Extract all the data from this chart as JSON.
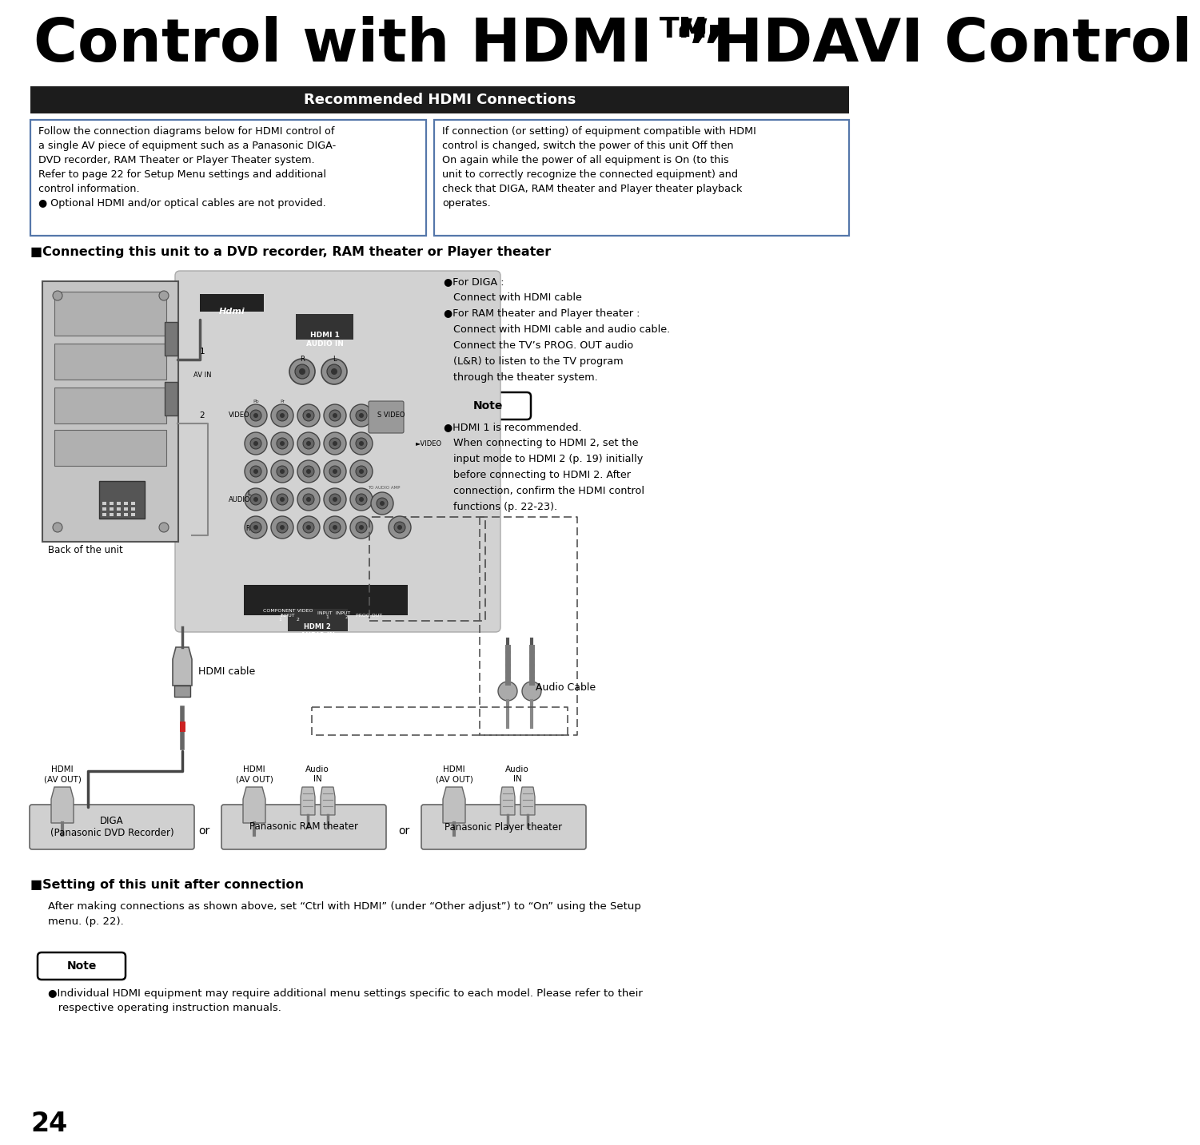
{
  "title_part1": "Control with HDMI “HDAVI Control",
  "title_tm": "TM",
  "title_part2": "”",
  "section_banner": "Recommended HDMI Connections",
  "left_box_text": "Follow the connection diagrams below for HDMI control of\na single AV piece of equipment such as a Panasonic DIGA-\nDVD recorder, RAM Theater or Player Theater system.\nRefer to page 22 for Setup Menu settings and additional\ncontrol information.\n● Optional HDMI and/or optical cables are not provided.",
  "right_box_text": "If connection (or setting) of equipment compatible with HDMI\ncontrol is changed, switch the power of this unit Off then\nOn again while the power of all equipment is On (to this\nunit to correctly recognize the connected equipment) and\ncheck that DIGA, RAM theater and Player theater playback\noperates.",
  "section2_title": "■Connecting this unit to a DVD recorder, RAM theater or Player theater",
  "right_notes": [
    "●For DIGA :",
    "   Connect with HDMI cable",
    "●For RAM theater and Player theater :",
    "   Connect with HDMI cable and audio cable.",
    "   Connect the TV’s PROG. OUT audio",
    "   (L&R) to listen to the TV program",
    "   through the theater system."
  ],
  "note_label": "Note",
  "note_bullets": [
    "●HDMI 1 is recommended.",
    "   When connecting to HDMI 2, set the",
    "   input mode to HDMI 2 (p. 19) initially",
    "   before connecting to HDMI 2. After",
    "   connection, confirm the HDMI control",
    "   functions (p. 22-23)."
  ],
  "hdmi_cable_label": "HDMI cable",
  "audio_cable_label": "Audio Cable",
  "back_of_unit": "Back of the unit",
  "bottom_device_labels": [
    "DIGA\n(Panasonic DVD Recorder)",
    "Panasonic RAM theater",
    "Panasonic Player theater"
  ],
  "hdmi_labels": [
    "HDMI\n(AV OUT)",
    "HDMI\n(AV OUT)",
    "HDMI\n(AV OUT)"
  ],
  "audio_labels": [
    "Audio\nIN",
    "Audio\nIN"
  ],
  "section3_title": "■Setting of this unit after connection",
  "section3_text": "After making connections as shown above, set “Ctrl with HDMI” (under “Other adjust”) to “On” using the Setup\nmenu. (p. 22).",
  "note2_label": "Note",
  "note2_text": "●Individual HDMI equipment may require additional menu settings specific to each model. Please refer to their\n   respective operating instruction manuals.",
  "page_number": "24",
  "bg": "#ffffff",
  "banner_bg": "#1c1c1c",
  "banner_fg": "#ffffff",
  "box_border": "#5577aa",
  "gray_panel": "#c8c8c8",
  "gray_tv": "#c0c0c0",
  "dark_connector": "#444444",
  "mid_gray": "#888888",
  "light_connector": "#aaaaaa"
}
